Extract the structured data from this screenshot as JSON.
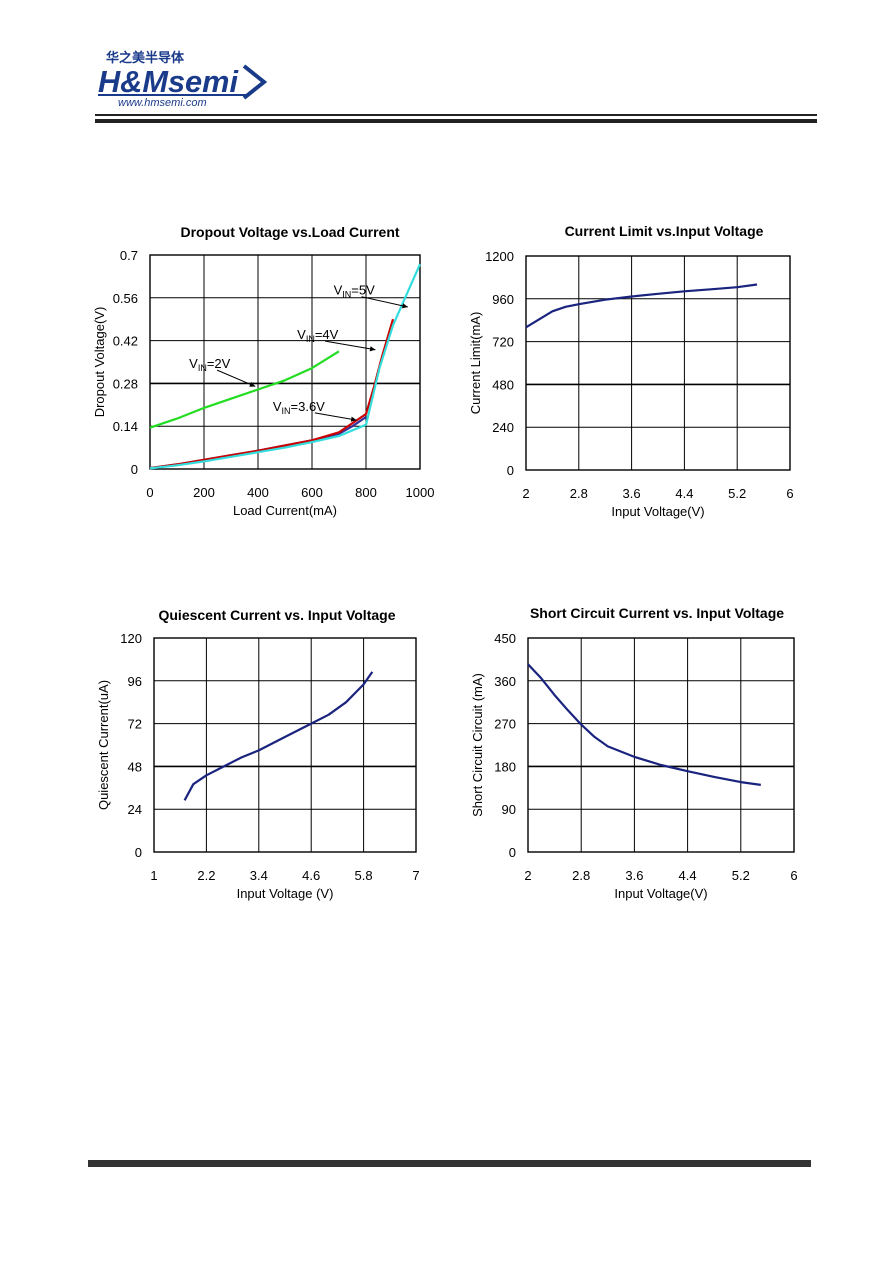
{
  "header": {
    "logo_cn": "华之美半导体",
    "logo_brand": "H&Msemi",
    "logo_url": "www.hmsemi.com"
  },
  "chart_data": [
    {
      "id": "c1",
      "type": "line",
      "title": "Dropout Voltage vs.Load Current",
      "xlabel": "Load Current(mA)",
      "ylabel": "Dropout Voltage(V)",
      "xlim": [
        0,
        1000
      ],
      "ylim": [
        0,
        0.7
      ],
      "xticks": [
        0,
        200,
        400,
        600,
        800,
        1000
      ],
      "yticks": [
        0,
        0.14,
        0.28,
        0.42,
        0.56,
        0.7
      ],
      "ytick_labels": [
        "0",
        "0.14",
        "0.28",
        "0.42",
        "0.56",
        "0.7"
      ],
      "grid": true,
      "series": [
        {
          "name": "VIN=2V",
          "color": "#22dd22",
          "x": [
            0,
            100,
            200,
            300,
            400,
            500,
            600,
            700
          ],
          "y": [
            0.135,
            0.165,
            0.2,
            0.23,
            0.26,
            0.29,
            0.33,
            0.385
          ]
        },
        {
          "name": "VIN=3.6V",
          "color": "#333399",
          "x": [
            0,
            100,
            200,
            300,
            400,
            500,
            600,
            700,
            750,
            800
          ],
          "y": [
            0.003,
            0.015,
            0.03,
            0.045,
            0.06,
            0.077,
            0.094,
            0.115,
            0.14,
            0.17
          ]
        },
        {
          "name": "VIN=4V",
          "color": "#cc0000",
          "x": [
            0,
            100,
            200,
            300,
            400,
            500,
            600,
            700,
            750,
            800,
            830,
            860,
            900
          ],
          "y": [
            0.003,
            0.015,
            0.03,
            0.045,
            0.06,
            0.077,
            0.094,
            0.12,
            0.15,
            0.18,
            0.27,
            0.37,
            0.49
          ]
        },
        {
          "name": "VIN=5V",
          "color": "#33dddd",
          "x": [
            0,
            100,
            200,
            300,
            400,
            500,
            600,
            700,
            800,
            850,
            900,
            950,
            1000
          ],
          "y": [
            0.002,
            0.012,
            0.025,
            0.04,
            0.055,
            0.07,
            0.088,
            0.108,
            0.145,
            0.33,
            0.47,
            0.57,
            0.67
          ]
        }
      ],
      "annotations": [
        {
          "base": "V",
          "sub": "IN",
          "rest": "=5V",
          "tx": 680,
          "ty": 0.57,
          "ax": 990,
          "ay": 0.525,
          "bx": 955,
          "by": 0.53
        },
        {
          "base": "V",
          "sub": "IN",
          "rest": "=4V",
          "tx": 545,
          "ty": 0.425,
          "ax": 855,
          "ay": 0.375,
          "bx": 835,
          "by": 0.39
        },
        {
          "base": "V",
          "sub": "IN",
          "rest": "=2V",
          "tx": 145,
          "ty": 0.33,
          "ax": 310,
          "ay": 0.285,
          "bx": 390,
          "by": 0.27
        },
        {
          "base": "V",
          "sub": "IN",
          "rest": "=3.6V",
          "tx": 455,
          "ty": 0.19,
          "ax": 730,
          "ay": 0.19,
          "bx": 765,
          "by": 0.16
        }
      ]
    },
    {
      "id": "c2",
      "type": "line",
      "title": "Current Limit vs.Input Voltage",
      "xlabel": "Input Voltage(V)",
      "ylabel": "Current Limit(mA)",
      "xlim": [
        2,
        6
      ],
      "ylim": [
        0,
        1200
      ],
      "xticks": [
        2,
        2.8,
        3.6,
        4.4,
        5.2,
        6
      ],
      "yticks": [
        0,
        240,
        480,
        720,
        960,
        1200
      ],
      "ytick_labels": [
        "0",
        "240",
        "480",
        "720",
        "960",
        "1200"
      ],
      "grid": true,
      "series": [
        {
          "color": "#1a237e",
          "x": [
            2.0,
            2.2,
            2.4,
            2.6,
            2.8,
            3.2,
            3.6,
            4.0,
            4.4,
            4.8,
            5.2,
            5.5
          ],
          "y": [
            800,
            845,
            890,
            915,
            930,
            955,
            973,
            988,
            1002,
            1013,
            1025,
            1040
          ]
        }
      ]
    },
    {
      "id": "c3",
      "type": "line",
      "title": "Quiescent Current vs. Input Voltage",
      "xlabel": "Input Voltage (V)",
      "ylabel": "Quiescent Current(uA)",
      "xlim": [
        1,
        7
      ],
      "ylim": [
        0,
        120
      ],
      "xticks": [
        1,
        2.2,
        3.4,
        4.6,
        5.8,
        7
      ],
      "yticks": [
        0,
        24,
        48,
        72,
        96,
        120
      ],
      "ytick_labels": [
        "0",
        "24",
        "48",
        "72",
        "96",
        "120"
      ],
      "grid": true,
      "series": [
        {
          "color": "#1a237e",
          "x": [
            1.7,
            1.9,
            2.2,
            2.6,
            3.0,
            3.4,
            3.8,
            4.2,
            4.6,
            5.0,
            5.4,
            5.8,
            6.0
          ],
          "y": [
            29,
            38,
            43,
            48,
            53,
            57,
            62,
            67,
            72,
            77,
            84,
            94,
            101
          ]
        }
      ]
    },
    {
      "id": "c4",
      "type": "line",
      "title": "Short Circuit Current vs. Input Voltage",
      "xlabel": "Input Voltage(V)",
      "ylabel": "Short Circuit Circuit (mA)",
      "xlim": [
        2,
        6
      ],
      "ylim": [
        0,
        450
      ],
      "xticks": [
        2,
        2.8,
        3.6,
        4.4,
        5.2,
        6
      ],
      "yticks": [
        0,
        90,
        180,
        270,
        360,
        450
      ],
      "ytick_labels": [
        "0",
        "90",
        "180",
        "270",
        "360",
        "450"
      ],
      "grid": true,
      "series": [
        {
          "color": "#1a237e",
          "x": [
            2.0,
            2.2,
            2.4,
            2.6,
            2.8,
            3.0,
            3.2,
            3.6,
            4.0,
            4.4,
            4.8,
            5.2,
            5.5
          ],
          "y": [
            395,
            365,
            330,
            298,
            268,
            242,
            222,
            200,
            183,
            170,
            158,
            147,
            141
          ]
        }
      ]
    }
  ]
}
